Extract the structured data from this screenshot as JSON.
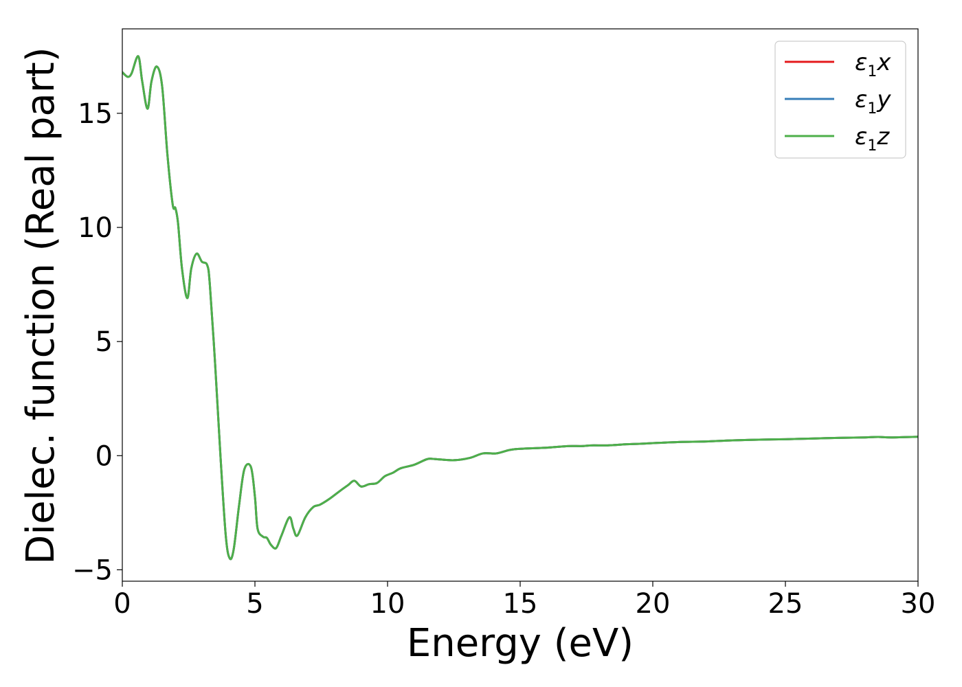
{
  "chart_data": {
    "type": "line",
    "xlabel": "Energy (eV)",
    "ylabel": "Dielec. function (Real part)",
    "xlim": [
      0,
      30
    ],
    "ylim": [
      -5.5,
      18.7
    ],
    "xticks": [
      0,
      5,
      10,
      15,
      20,
      25,
      30
    ],
    "yticks": [
      -5,
      0,
      5,
      10,
      15
    ],
    "xtick_labels": [
      "0",
      "5",
      "10",
      "15",
      "20",
      "25",
      "30"
    ],
    "ytick_labels": [
      "−5",
      "0",
      "5",
      "10",
      "15"
    ],
    "grid": false,
    "legend_position": "top-right",
    "x": [
      0,
      0.2,
      0.35,
      0.6,
      0.75,
      0.95,
      1.1,
      1.3,
      1.5,
      1.7,
      1.9,
      2.0,
      2.1,
      2.25,
      2.45,
      2.6,
      2.8,
      3.0,
      3.2,
      3.3,
      3.5,
      3.7,
      3.9,
      4.05,
      4.2,
      4.4,
      4.6,
      4.85,
      5.0,
      5.1,
      5.3,
      5.45,
      5.6,
      5.8,
      6.0,
      6.3,
      6.45,
      6.6,
      6.9,
      7.2,
      7.45,
      7.8,
      8.2,
      8.5,
      8.75,
      9.0,
      9.3,
      9.6,
      9.9,
      10.2,
      10.5,
      11.0,
      11.5,
      11.8,
      12.5,
      13.1,
      13.6,
      14.1,
      14.6,
      15.0,
      16.0,
      16.8,
      17.3,
      17.7,
      18.3,
      19.0,
      19.5,
      20.0,
      21.0,
      22.0,
      23.0,
      24.0,
      25.0,
      26.0,
      27.0,
      28.0,
      28.5,
      29.0,
      30.0
    ],
    "series": [
      {
        "name": "ε1x",
        "color": "#e41a1c",
        "values": [
          16.8,
          16.6,
          16.75,
          17.5,
          16.4,
          15.2,
          16.4,
          17.05,
          16.2,
          13.2,
          11.0,
          10.85,
          10.2,
          8.2,
          6.9,
          8.2,
          8.85,
          8.5,
          8.35,
          7.5,
          4.0,
          0.0,
          -3.5,
          -4.5,
          -4.1,
          -2.2,
          -0.6,
          -0.5,
          -1.8,
          -3.2,
          -3.55,
          -3.6,
          -3.9,
          -4.05,
          -3.5,
          -2.7,
          -3.2,
          -3.5,
          -2.7,
          -2.25,
          -2.15,
          -1.9,
          -1.55,
          -1.3,
          -1.1,
          -1.35,
          -1.25,
          -1.2,
          -0.9,
          -0.75,
          -0.55,
          -0.4,
          -0.15,
          -0.15,
          -0.2,
          -0.1,
          0.1,
          0.1,
          0.25,
          0.3,
          0.35,
          0.42,
          0.42,
          0.45,
          0.45,
          0.5,
          0.52,
          0.55,
          0.6,
          0.62,
          0.67,
          0.7,
          0.72,
          0.75,
          0.78,
          0.8,
          0.82,
          0.8,
          0.83
        ]
      },
      {
        "name": "ε1y",
        "color": "#377eb8",
        "values": [
          16.8,
          16.6,
          16.75,
          17.5,
          16.4,
          15.2,
          16.4,
          17.05,
          16.2,
          13.2,
          11.0,
          10.85,
          10.2,
          8.2,
          6.9,
          8.2,
          8.85,
          8.5,
          8.35,
          7.5,
          4.0,
          0.0,
          -3.5,
          -4.5,
          -4.1,
          -2.2,
          -0.6,
          -0.5,
          -1.8,
          -3.2,
          -3.55,
          -3.6,
          -3.9,
          -4.05,
          -3.5,
          -2.7,
          -3.2,
          -3.5,
          -2.7,
          -2.25,
          -2.15,
          -1.9,
          -1.55,
          -1.3,
          -1.1,
          -1.35,
          -1.25,
          -1.2,
          -0.9,
          -0.75,
          -0.55,
          -0.4,
          -0.15,
          -0.15,
          -0.2,
          -0.1,
          0.1,
          0.1,
          0.25,
          0.3,
          0.35,
          0.42,
          0.42,
          0.45,
          0.45,
          0.5,
          0.52,
          0.55,
          0.6,
          0.62,
          0.67,
          0.7,
          0.72,
          0.75,
          0.78,
          0.8,
          0.82,
          0.8,
          0.83
        ]
      },
      {
        "name": "ε1z",
        "color": "#4daf4a",
        "values": [
          16.8,
          16.6,
          16.75,
          17.5,
          16.4,
          15.2,
          16.4,
          17.05,
          16.2,
          13.2,
          11.0,
          10.85,
          10.2,
          8.2,
          6.9,
          8.2,
          8.85,
          8.5,
          8.35,
          7.5,
          4.0,
          0.0,
          -3.5,
          -4.5,
          -4.1,
          -2.2,
          -0.6,
          -0.5,
          -1.8,
          -3.2,
          -3.55,
          -3.6,
          -3.9,
          -4.05,
          -3.5,
          -2.7,
          -3.2,
          -3.5,
          -2.7,
          -2.25,
          -2.15,
          -1.9,
          -1.55,
          -1.3,
          -1.1,
          -1.35,
          -1.25,
          -1.2,
          -0.9,
          -0.75,
          -0.55,
          -0.4,
          -0.15,
          -0.15,
          -0.2,
          -0.1,
          0.1,
          0.1,
          0.25,
          0.3,
          0.35,
          0.42,
          0.42,
          0.45,
          0.45,
          0.5,
          0.52,
          0.55,
          0.6,
          0.62,
          0.67,
          0.7,
          0.72,
          0.75,
          0.78,
          0.8,
          0.82,
          0.8,
          0.83
        ]
      }
    ],
    "legend": [
      {
        "base": "ε",
        "sub": "1",
        "axis": "x"
      },
      {
        "base": "ε",
        "sub": "1",
        "axis": "y"
      },
      {
        "base": "ε",
        "sub": "1",
        "axis": "z"
      }
    ]
  }
}
